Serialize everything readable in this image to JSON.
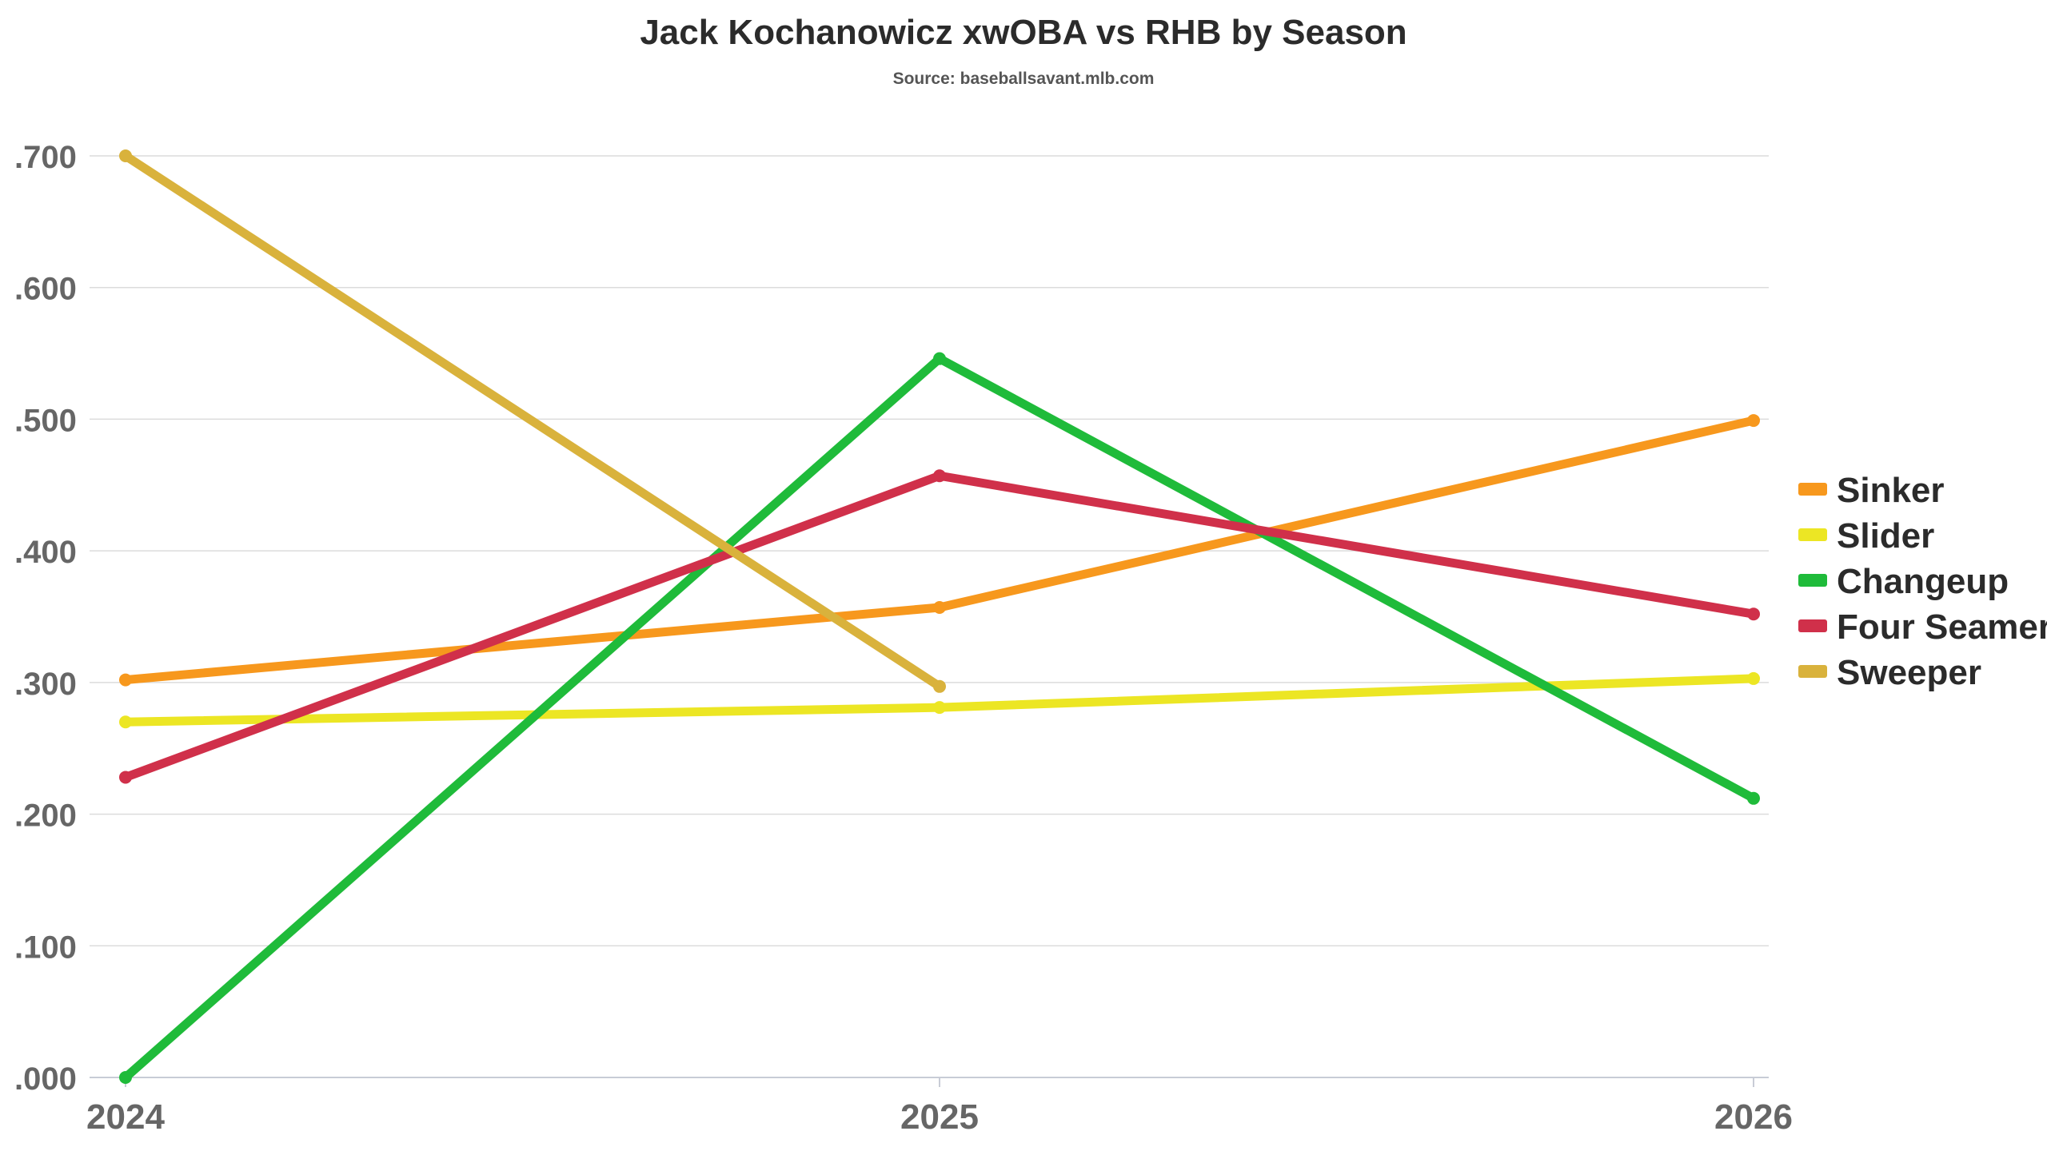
{
  "chart_data": {
    "type": "line",
    "title": "Jack Kochanowicz xwOBA vs RHB by Season",
    "subtitle": "Source: baseballsavant.mlb.com",
    "xlabel": "",
    "ylabel": "",
    "x": [
      "2024",
      "2025",
      "2026"
    ],
    "ylim": [
      0,
      0.7
    ],
    "yticks": [
      ".000",
      ".100",
      ".200",
      ".300",
      ".400",
      ".500",
      ".600",
      ".700"
    ],
    "ytick_values": [
      0,
      0.1,
      0.2,
      0.3,
      0.4,
      0.5,
      0.6,
      0.7
    ],
    "grid": true,
    "legend_position": "right",
    "series": [
      {
        "name": "Sinker",
        "color": "#f7981d",
        "values": [
          0.302,
          0.357,
          0.499
        ]
      },
      {
        "name": "Slider",
        "color": "#ece624",
        "values": [
          0.27,
          0.281,
          0.303
        ]
      },
      {
        "name": "Changeup",
        "color": "#1fbb3a",
        "values": [
          0.0,
          0.546,
          0.212
        ]
      },
      {
        "name": "Four Seamer",
        "color": "#d0304a",
        "values": [
          0.228,
          0.457,
          0.352
        ]
      },
      {
        "name": "Sweeper",
        "color": "#d9b23c",
        "values": [
          0.7,
          0.297,
          null
        ]
      }
    ]
  }
}
